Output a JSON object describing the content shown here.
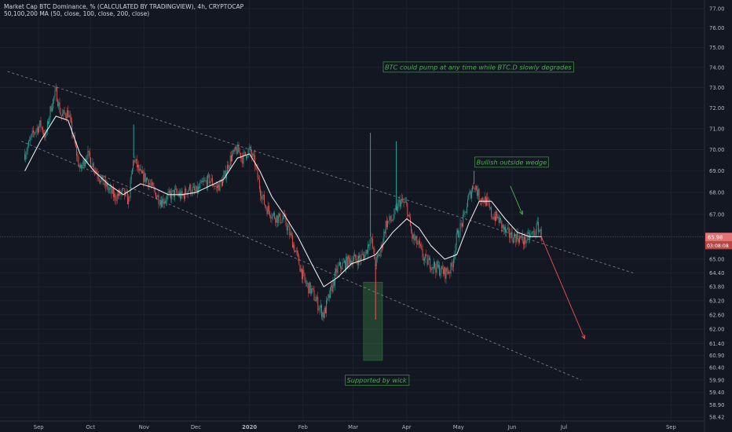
{
  "header": {
    "title": "Market Cap BTC Dominance, % (CALCULATED BY TRADINGVIEW), 4h, CRYPTOCAP",
    "indicator": "50,100,200 MA (50, close, 100, close, 200, close)"
  },
  "colors": {
    "background": "#131722",
    "grid": "#1e2230",
    "up_candle": "#26a69a",
    "down_candle": "#ef5350",
    "ma_line": "#ffffff",
    "trendline": "#787b86",
    "annotation_green": "#4caf50",
    "forecast_arrow": "#ef5350",
    "axis_text": "#b2b5be",
    "price_tag": "#e57373"
  },
  "chart_data": {
    "type": "candlestick",
    "symbol": "CRYPTOCAP:BTC.D",
    "timeframe": "4h",
    "title": "Market Cap BTC Dominance, % (CALCULATED BY TRADINGVIEW), 4h, CRYPTOCAP",
    "y_axis": {
      "ticks": [
        "77.00",
        "76.00",
        "75.00",
        "74.00",
        "73.00",
        "72.00",
        "71.00",
        "70.00",
        "69.00",
        "68.00",
        "67.00",
        "66.00",
        "65.00",
        "64.40",
        "63.80",
        "63.20",
        "62.60",
        "62.00",
        "61.40",
        "60.90",
        "60.40",
        "59.90",
        "59.40",
        "58.90",
        "58.42"
      ],
      "scale": "log"
    },
    "x_axis": {
      "ticks": [
        "Sep",
        "Oct",
        "Nov",
        "Dec",
        "2020",
        "Feb",
        "Mar",
        "Apr",
        "May",
        "Jun",
        "Jul",
        "Aug",
        "Sep"
      ]
    },
    "last_price": "65.98",
    "countdown": "03:08:08",
    "price_path": [
      [
        "Aug 24",
        69.8
      ],
      [
        "Aug 29",
        70.8
      ],
      [
        "Sep 2",
        71.2
      ],
      [
        "Sep 5",
        70.6
      ],
      [
        "Sep 8",
        72.0
      ],
      [
        "Sep 11",
        72.8
      ],
      [
        "Sep 14",
        71.6
      ],
      [
        "Sep 18",
        71.8
      ],
      [
        "Sep 21",
        70.6
      ],
      [
        "Sep 25",
        69.0
      ],
      [
        "Sep 29",
        69.8
      ],
      [
        "Oct 3",
        69.2
      ],
      [
        "Oct 7",
        68.6
      ],
      [
        "Oct 11",
        68.2
      ],
      [
        "Oct 15",
        67.8
      ],
      [
        "Oct 20",
        68.0
      ],
      [
        "Oct 23",
        67.6
      ],
      [
        "Oct 26",
        69.6
      ],
      [
        "Oct 30",
        68.8
      ],
      [
        "Nov 3",
        68.6
      ],
      [
        "Nov 7",
        68.0
      ],
      [
        "Nov 11",
        67.6
      ],
      [
        "Nov 15",
        67.8
      ],
      [
        "Nov 19",
        68.0
      ],
      [
        "Nov 23",
        67.8
      ],
      [
        "Nov 27",
        68.2
      ],
      [
        "Dec 1",
        68.0
      ],
      [
        "Dec 5",
        68.4
      ],
      [
        "Dec 9",
        68.6
      ],
      [
        "Dec 13",
        68.2
      ],
      [
        "Dec 17",
        68.6
      ],
      [
        "Dec 21",
        69.6
      ],
      [
        "Dec 25",
        70.0
      ],
      [
        "Dec 28",
        69.6
      ],
      [
        "Jan 1",
        70.0
      ],
      [
        "Jan 4",
        69.4
      ],
      [
        "Jan 7",
        68.2
      ],
      [
        "Jan 10",
        67.4
      ],
      [
        "Jan 14",
        67.0
      ],
      [
        "Jan 18",
        66.8
      ],
      [
        "Jan 21",
        66.8
      ],
      [
        "Jan 25",
        66.0
      ],
      [
        "Jan 29",
        65.0
      ],
      [
        "Feb 2",
        64.0
      ],
      [
        "Feb 6",
        63.6
      ],
      [
        "Feb 10",
        63.0
      ],
      [
        "Feb 13",
        62.6
      ],
      [
        "Feb 17",
        63.6
      ],
      [
        "Feb 21",
        64.6
      ],
      [
        "Feb 25",
        64.8
      ],
      [
        "Feb 29",
        65.0
      ],
      [
        "Mar 4",
        65.0
      ],
      [
        "Mar 8",
        65.2
      ],
      [
        "Mar 11",
        66.0
      ],
      [
        "Mar 14",
        64.8
      ],
      [
        "Mar 17",
        65.4
      ],
      [
        "Mar 20",
        66.6
      ],
      [
        "Mar 24",
        66.8
      ],
      [
        "Mar 28",
        67.6
      ],
      [
        "Apr 1",
        67.4
      ],
      [
        "Apr 4",
        66.0
      ],
      [
        "Apr 8",
        65.6
      ],
      [
        "Apr 11",
        65.0
      ],
      [
        "Apr 15",
        64.8
      ],
      [
        "Apr 19",
        64.6
      ],
      [
        "Apr 23",
        64.4
      ],
      [
        "Apr 27",
        64.6
      ],
      [
        "Apr 30",
        66.0
      ],
      [
        "May 4",
        66.8
      ],
      [
        "May 7",
        67.8
      ],
      [
        "May 10",
        68.4
      ],
      [
        "May 13",
        67.8
      ],
      [
        "May 17",
        67.6
      ],
      [
        "May 20",
        67.0
      ],
      [
        "May 24",
        66.8
      ],
      [
        "May 28",
        66.2
      ],
      [
        "Jun 1",
        66.0
      ],
      [
        "Jun 4",
        66.0
      ],
      [
        "Jun 8",
        65.8
      ],
      [
        "Jun 11",
        66.0
      ],
      [
        "Jun 14",
        66.2
      ],
      [
        "Jun 16",
        66.5
      ],
      [
        "Jun 18",
        65.98
      ]
    ],
    "ma_path": [
      [
        "Aug 24",
        69.0
      ],
      [
        "Sep 2",
        70.4
      ],
      [
        "Sep 11",
        71.6
      ],
      [
        "Sep 18",
        71.4
      ],
      [
        "Sep 25",
        69.8
      ],
      [
        "Oct 3",
        69.0
      ],
      [
        "Oct 11",
        68.4
      ],
      [
        "Oct 20",
        67.9
      ],
      [
        "Oct 30",
        68.4
      ],
      [
        "Nov 7",
        68.2
      ],
      [
        "Nov 15",
        67.9
      ],
      [
        "Nov 23",
        67.9
      ],
      [
        "Dec 1",
        68.0
      ],
      [
        "Dec 9",
        68.3
      ],
      [
        "Dec 17",
        68.6
      ],
      [
        "Dec 25",
        69.6
      ],
      [
        "Jan 1",
        69.8
      ],
      [
        "Jan 7",
        69.0
      ],
      [
        "Jan 14",
        67.8
      ],
      [
        "Jan 21",
        67.0
      ],
      [
        "Jan 29",
        66.0
      ],
      [
        "Feb 6",
        64.8
      ],
      [
        "Feb 13",
        63.8
      ],
      [
        "Feb 21",
        64.2
      ],
      [
        "Feb 29",
        64.8
      ],
      [
        "Mar 8",
        65.0
      ],
      [
        "Mar 14",
        65.2
      ],
      [
        "Mar 24",
        66.2
      ],
      [
        "Apr 1",
        66.8
      ],
      [
        "Apr 8",
        66.4
      ],
      [
        "Apr 15",
        65.6
      ],
      [
        "Apr 23",
        65.0
      ],
      [
        "Apr 30",
        65.2
      ],
      [
        "May 7",
        66.6
      ],
      [
        "May 13",
        67.6
      ],
      [
        "May 20",
        67.6
      ],
      [
        "May 28",
        66.8
      ],
      [
        "Jun 4",
        66.2
      ],
      [
        "Jun 11",
        66.0
      ],
      [
        "Jun 18",
        66.0
      ]
    ],
    "spikes": [
      {
        "date": "Oct 26",
        "high": 71.2
      },
      {
        "date": "Mar 11",
        "high": 70.8
      },
      {
        "date": "Mar 14",
        "low": 62.4
      },
      {
        "date": "Mar 26",
        "high": 70.4
      },
      {
        "date": "May 10",
        "high": 69.0
      }
    ],
    "trendlines": [
      {
        "name": "upper-wedge-line",
        "from": [
          "Aug 14",
          73.8
        ],
        "to": [
          "Aug 10 2020",
          64.4
        ]
      },
      {
        "name": "lower-wedge-line",
        "from": [
          "Aug 22",
          70.4
        ],
        "to": [
          "Jul 11",
          59.9
        ]
      }
    ],
    "support_box": {
      "x_from": "Mar 7",
      "x_to": "Mar 18",
      "y_from": 64.0,
      "y_to": 60.7
    },
    "annotations": [
      {
        "text": "BTC could pump at any time while BTC.D slowly degrades",
        "date": "Mar 18",
        "value": 73.9
      },
      {
        "text": "Bullish outside wedge",
        "date": "May 10",
        "value": 69.3
      },
      {
        "text": "Supported by wick",
        "date": "Feb 25",
        "value": 59.8
      }
    ],
    "arrows": [
      {
        "name": "green-arrow",
        "from": [
          "May 31",
          68.3
        ],
        "to": [
          "Jun 7",
          67.0
        ]
      },
      {
        "name": "forecast-arrow",
        "from": [
          "Jun 18",
          65.98
        ],
        "to": [
          "Jul 13",
          61.6
        ]
      }
    ]
  }
}
